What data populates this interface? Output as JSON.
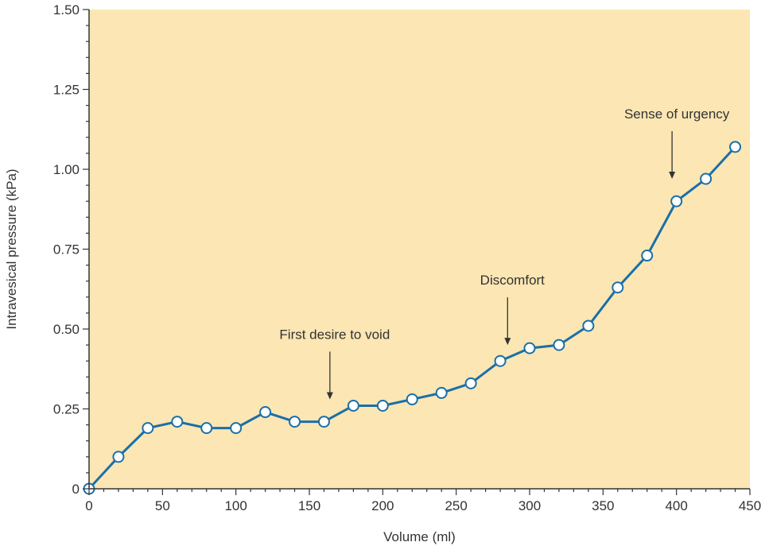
{
  "colors": {
    "plot_background": "#fbe6b4",
    "line": "#1a6fa8",
    "marker_fill": "#ffffff",
    "axis": "#333333"
  },
  "chart_data": {
    "type": "line",
    "title": "",
    "xlabel": "Volume (ml)",
    "ylabel": "Intravesical pressure (kPa)",
    "xlim": [
      0,
      450
    ],
    "ylim": [
      0,
      1.5
    ],
    "xticks": [
      0,
      50,
      100,
      150,
      200,
      250,
      300,
      350,
      400,
      450
    ],
    "xtick_labels": [
      "0",
      "50",
      "100",
      "150",
      "200",
      "250",
      "300",
      "350",
      "400",
      "450"
    ],
    "yticks": [
      0,
      0.25,
      0.5,
      0.75,
      1.0,
      1.25,
      1.5
    ],
    "ytick_labels": [
      "0",
      "0.25",
      "0.50",
      "0.75",
      "1.00",
      "1.25",
      "1.50"
    ],
    "grid": false,
    "series": [
      {
        "x": [
          0,
          20,
          40,
          60,
          80,
          100,
          120,
          140,
          160,
          180,
          200,
          220,
          240,
          260,
          280,
          300,
          320,
          340,
          360,
          380,
          400,
          420,
          440
        ],
        "y": [
          0,
          0.1,
          0.19,
          0.21,
          0.19,
          0.19,
          0.24,
          0.21,
          0.21,
          0.26,
          0.26,
          0.28,
          0.3,
          0.33,
          0.4,
          0.44,
          0.45,
          0.51,
          0.63,
          0.73,
          0.9,
          0.97,
          1.07
        ]
      }
    ],
    "annotations": [
      {
        "text": "First desire to void",
        "x": 164,
        "y": 0.28
      },
      {
        "text": "Discomfort",
        "x": 285,
        "y": 0.45
      },
      {
        "text": "Sense of urgency",
        "x": 397,
        "y": 0.97
      }
    ]
  }
}
